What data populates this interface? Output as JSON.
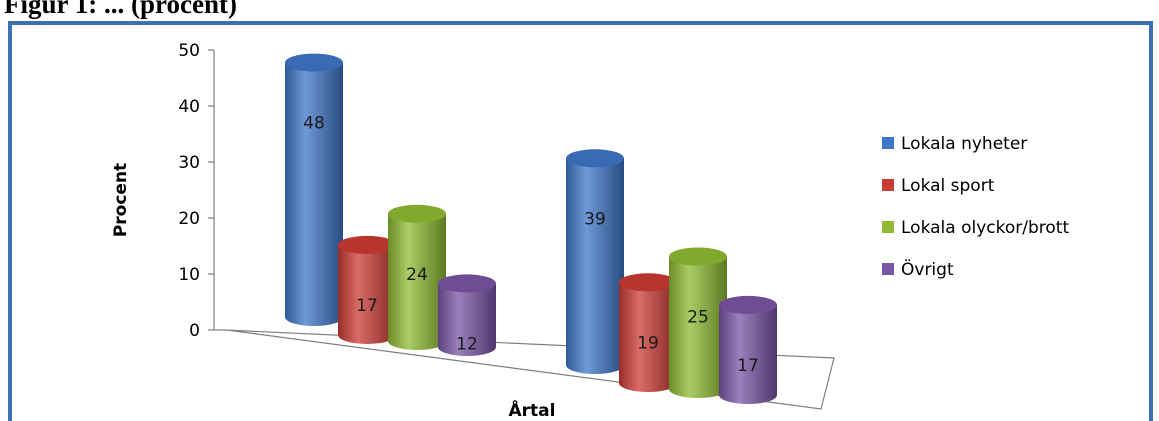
{
  "caption": "Figur 1: ... (procent)",
  "chart_data": {
    "type": "bar",
    "style": "3d-cylinder",
    "categories": [
      "",
      ""
    ],
    "series": [
      {
        "name": "Lokala nyheter",
        "color": "#3f76c8",
        "values": [
          48,
          39
        ]
      },
      {
        "name": "Lokal sport",
        "color": "#cc3b34",
        "values": [
          17,
          19
        ]
      },
      {
        "name": "Lokala olyckor/brott",
        "color": "#8ebc33",
        "values": [
          24,
          25
        ]
      },
      {
        "name": "Övrigt",
        "color": "#7a56a6",
        "values": [
          12,
          17
        ]
      }
    ],
    "xlabel": "Årtal",
    "ylabel": "Procent",
    "ylim": [
      0,
      50
    ],
    "yticks": [
      0,
      10,
      20,
      30,
      40,
      50
    ],
    "legend_position": "right",
    "grid": false,
    "data_labels": true
  }
}
